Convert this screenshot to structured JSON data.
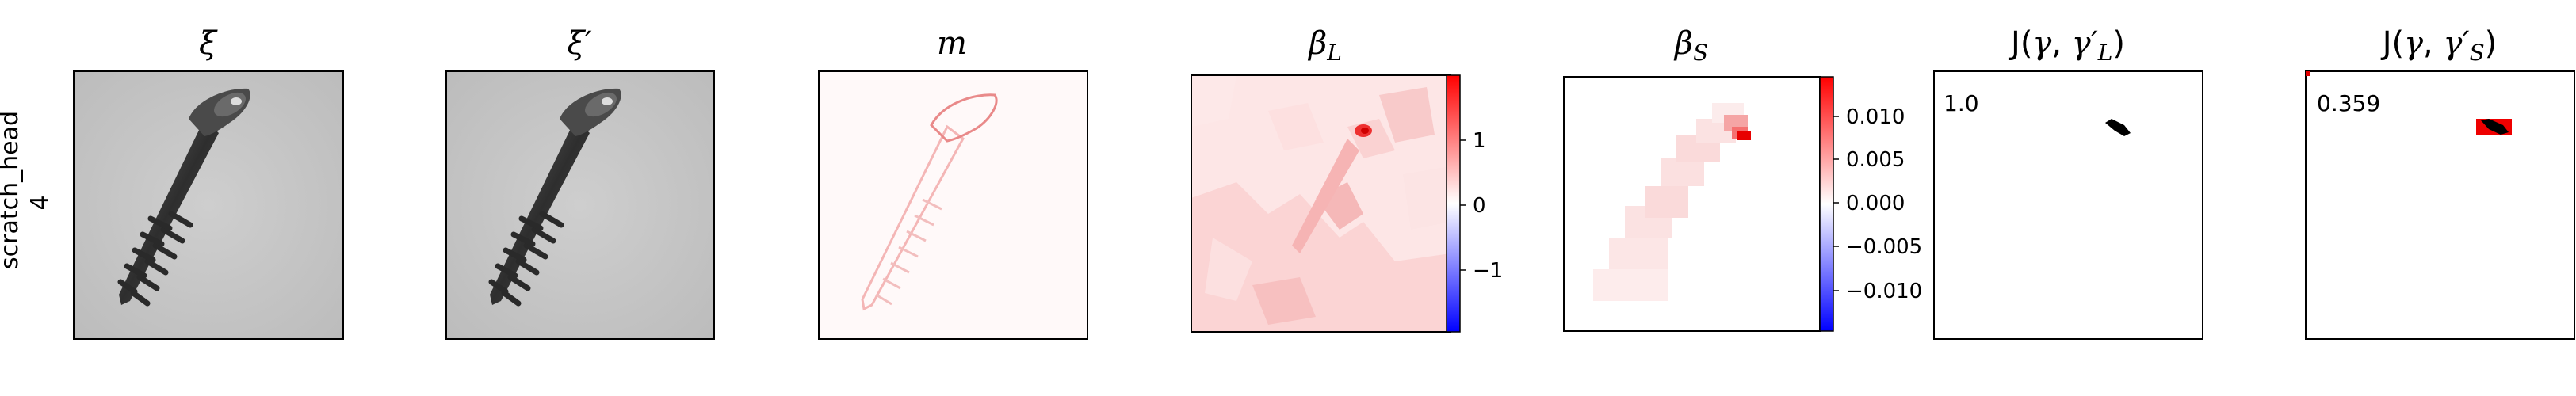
{
  "row": {
    "label_line1": "scratch_head",
    "label_line2": "4"
  },
  "panels": {
    "p1": {
      "title": "ξ"
    },
    "p2": {
      "title": "ξ′"
    },
    "p3": {
      "title": "m"
    },
    "p4": {
      "title_main": "β",
      "title_sub": "L"
    },
    "p5": {
      "title_main": "β",
      "title_sub": "S"
    },
    "p6": {
      "title": "J(γ, γ′L)",
      "title_pre": "J(",
      "title_g": "γ",
      "title_gp": "γ′",
      "title_sub": "L",
      "title_post": ")",
      "annotation": "1.0"
    },
    "p7": {
      "title": "J(γ, γ′S)",
      "title_pre": "J(",
      "title_g": "γ",
      "title_gp": "γ′",
      "title_sub": "S",
      "title_post": ")",
      "annotation": "0.359"
    }
  },
  "colorbars": {
    "cb4": {
      "ticks": [
        "1",
        "0",
        "−1"
      ],
      "colormap": "bwr"
    },
    "cb5": {
      "ticks": [
        "0.010",
        "0.005",
        "0.000",
        "−0.005",
        "−0.010"
      ],
      "colormap": "bwr"
    }
  },
  "colors": {
    "positive": "#ff0000",
    "negative": "#0000ff",
    "screw": "#3a3a3a",
    "background_gray": "#c8c8c8"
  }
}
